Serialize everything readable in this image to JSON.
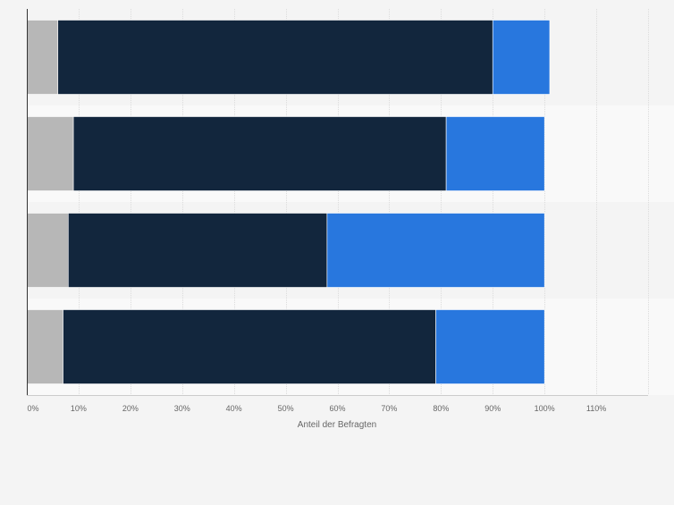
{
  "chart_data": {
    "type": "bar",
    "orientation": "horizontal",
    "stacked": true,
    "title": "",
    "xlabel": "Anteil der Befragten",
    "ylabel": "",
    "xlim": [
      0,
      120
    ],
    "xticks": [
      0,
      10,
      20,
      30,
      40,
      50,
      60,
      70,
      80,
      90,
      100,
      110
    ],
    "tick_suffix": "%",
    "grid": true,
    "legend": "none",
    "categories": [
      "",
      "",
      "",
      ""
    ],
    "series": [
      {
        "color": "#b7b7b7",
        "values": [
          6,
          9,
          8,
          7
        ]
      },
      {
        "color": "#12263d",
        "values": [
          84,
          72,
          50,
          72
        ]
      },
      {
        "color": "#2877de",
        "values": [
          11,
          19,
          42,
          21
        ]
      }
    ]
  }
}
